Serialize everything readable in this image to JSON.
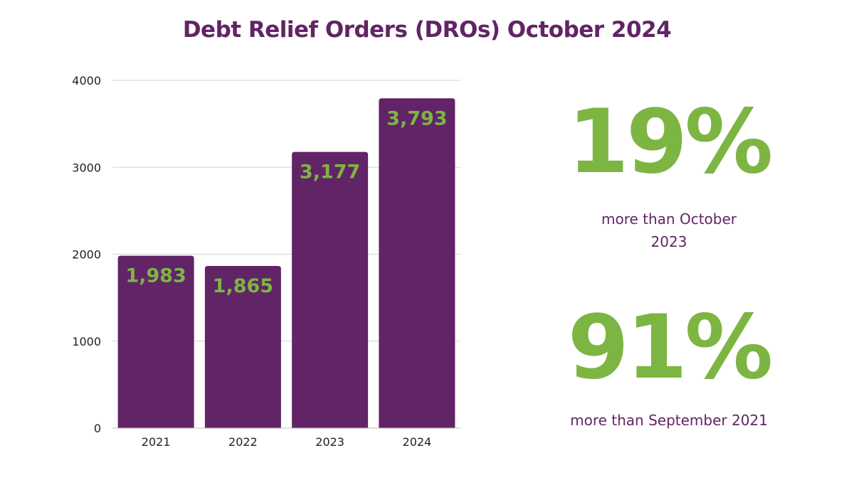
{
  "title": "Debt Relief Orders (DROs) October 2024",
  "colors": {
    "purple": "#612466",
    "green": "#7db543",
    "grid": "#d3d3d3",
    "axis_text": "#222222"
  },
  "chart_data": {
    "type": "bar",
    "title": "Debt Relief Orders (DROs) October 2024",
    "categories": [
      "2021",
      "2022",
      "2023",
      "2024"
    ],
    "values": [
      1983,
      1865,
      3177,
      3793
    ],
    "data_labels": [
      "1,983",
      "1,865",
      "3,177",
      "3,793"
    ],
    "yticks": [
      0,
      1000,
      2000,
      3000,
      4000
    ],
    "ylim": [
      0,
      4000
    ],
    "xlabel": "",
    "ylabel": "",
    "grid": true,
    "legend": "none"
  },
  "stats": [
    {
      "value": "19%",
      "caption": "more than October 2023"
    },
    {
      "value": "91%",
      "caption": "more than September 2021"
    }
  ]
}
